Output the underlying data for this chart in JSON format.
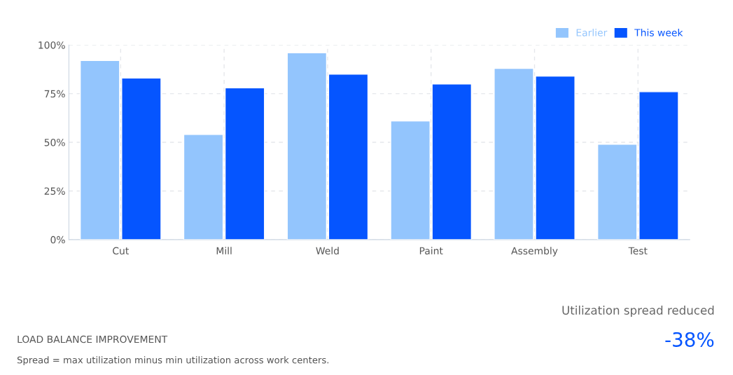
{
  "chart_data": {
    "type": "bar",
    "categories": [
      "Cut",
      "Mill",
      "Weld",
      "Paint",
      "Assembly",
      "Test"
    ],
    "series": [
      {
        "name": "Earlier",
        "color": "#93c5fd",
        "values": [
          92,
          54,
          96,
          61,
          88,
          49
        ]
      },
      {
        "name": "This week",
        "color": "#0555ff",
        "values": [
          83,
          78,
          85,
          80,
          84,
          76
        ]
      }
    ],
    "ylim": [
      0,
      100
    ],
    "yticks": [
      {
        "value": 0,
        "label": "0%"
      },
      {
        "value": 25,
        "label": "25%"
      },
      {
        "value": 50,
        "label": "50%"
      },
      {
        "value": 75,
        "label": "75%"
      },
      {
        "value": 100,
        "label": "100%"
      }
    ],
    "grid": true,
    "legend": "top right",
    "annotations": [
      "Utilization spread reduced",
      "-38%",
      "LOAD BALANCE IMPROVEMENT",
      "Spread = max utilization minus min utilization across work centers."
    ]
  }
}
